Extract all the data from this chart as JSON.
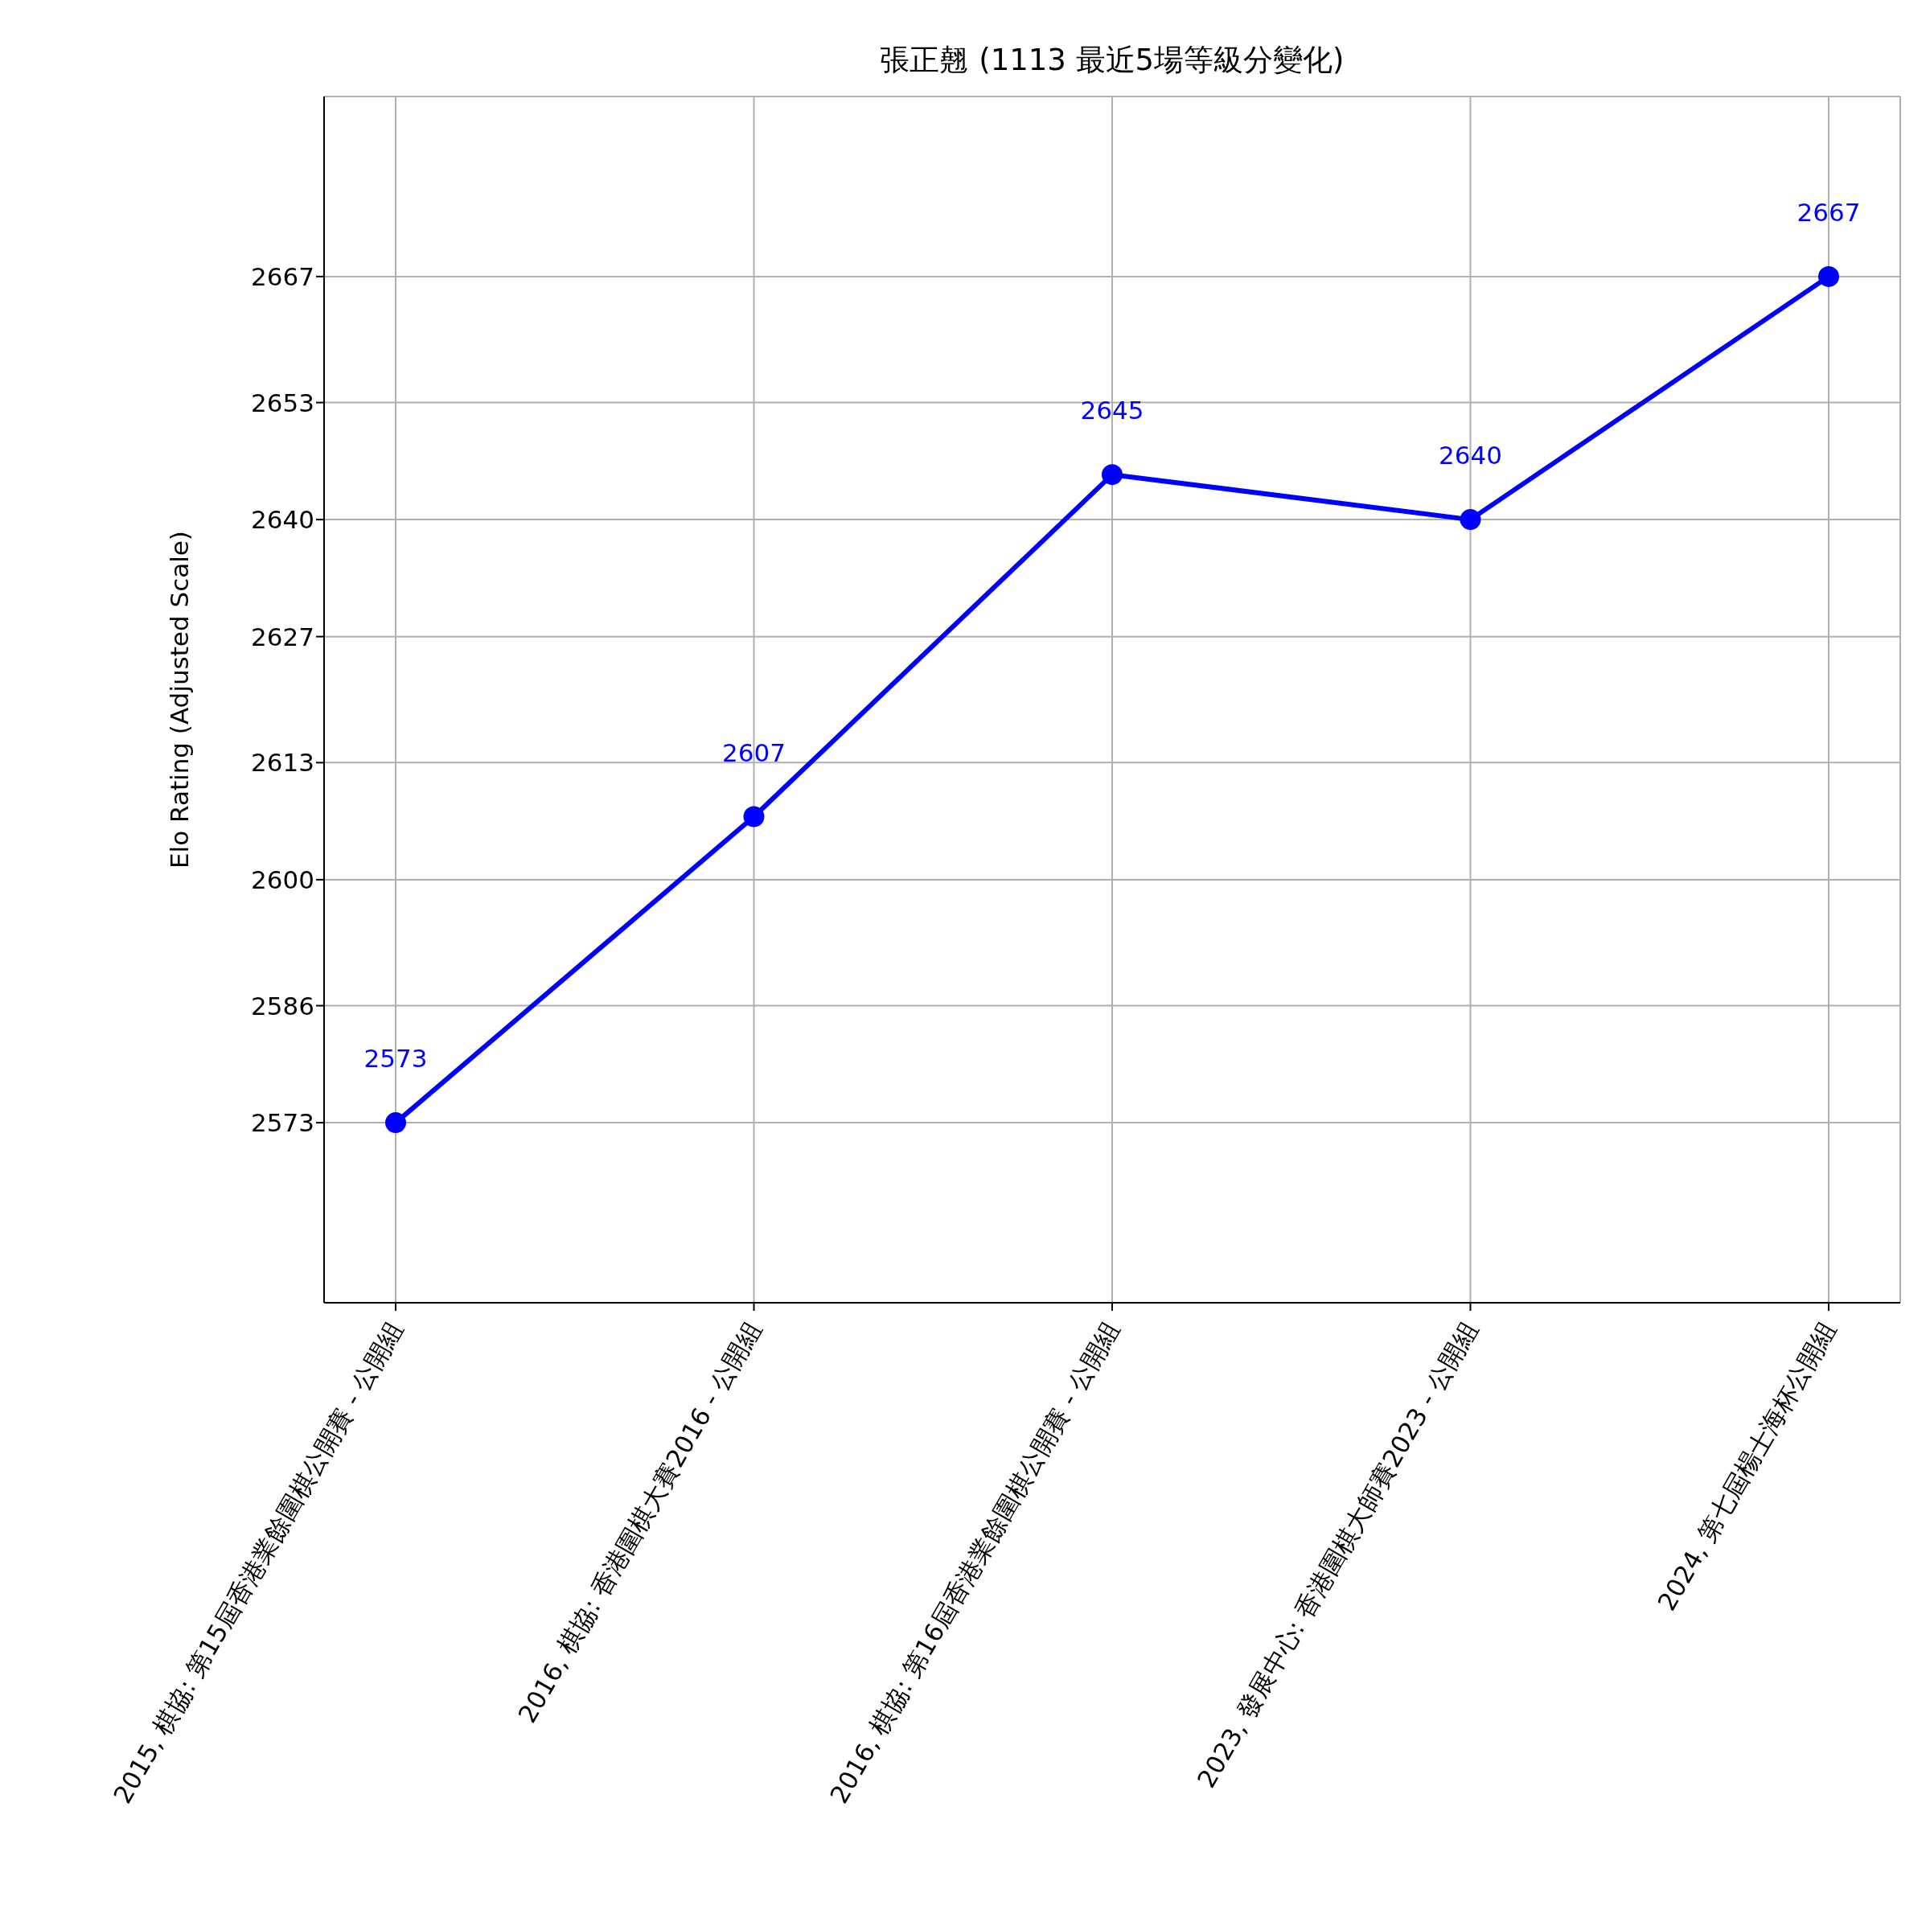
{
  "chart_data": {
    "type": "line",
    "title": "張正翹 (1113 最近5場等級分變化)",
    "ylabel": "Elo Rating (Adjusted Scale)",
    "categories": [
      "2015, 棋協: 第15屆香港業餘圍棋公開賽 - 公開組",
      "2016, 棋協: 香港圍棋大賽2016 - 公開組",
      "2016, 棋協: 第16屆香港業餘圍棋公開賽 - 公開組",
      "2023, 發展中心: 香港圍棋大師賽2023 - 公開組",
      "2024, 第七屆楊士海杯公開組"
    ],
    "series": [
      {
        "color": "#0000ff",
        "values": [
          2573,
          2607,
          2645,
          2640,
          2667
        ]
      }
    ],
    "ylim": [
      2553,
      2687
    ],
    "yticks": [
      2573,
      2586,
      2600,
      2613,
      2627,
      2640,
      2653,
      2667
    ],
    "grid": true,
    "marker": "circle",
    "data_labels": true
  }
}
